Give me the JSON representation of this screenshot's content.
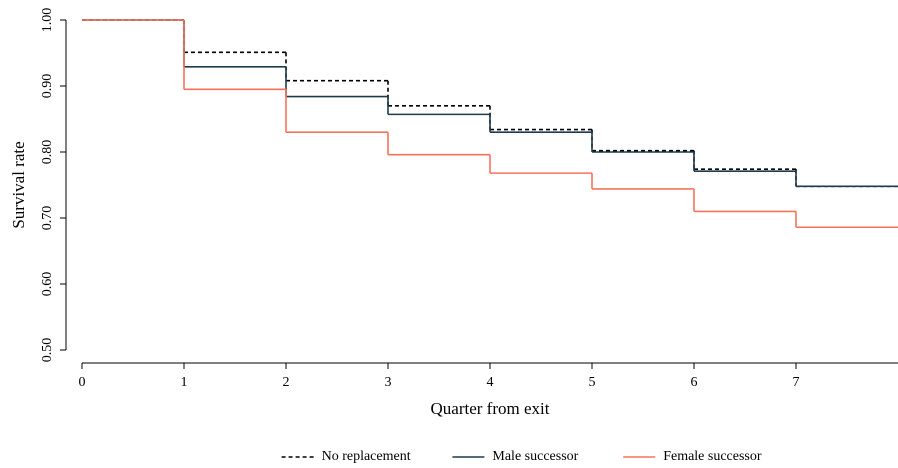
{
  "chart_data": {
    "type": "step",
    "x_label": "Quarter from exit",
    "y_label": "Survival rate",
    "x": [
      0,
      1,
      2,
      3,
      4,
      5,
      6,
      7
    ],
    "series": [
      {
        "name": "No replacement",
        "color": "#000000",
        "dash": true,
        "values": [
          1.0,
          0.951,
          0.908,
          0.87,
          0.834,
          0.802,
          0.774,
          0.748
        ]
      },
      {
        "name": "Male successor",
        "color": "#1f3a4d",
        "dash": false,
        "values": [
          1.0,
          0.929,
          0.884,
          0.857,
          0.83,
          0.8,
          0.771,
          0.748
        ]
      },
      {
        "name": "Female successor",
        "color": "#f4735b",
        "dash": false,
        "values": [
          1.0,
          0.895,
          0.83,
          0.796,
          0.768,
          0.744,
          0.71,
          0.686
        ]
      }
    ],
    "xlim": [
      0,
      8
    ],
    "ylim": [
      0.5,
      1.0
    ],
    "xticks": [
      0,
      1,
      2,
      3,
      4,
      5,
      6,
      7
    ],
    "yticks": [
      {
        "value": 0.5,
        "label": "0.50"
      },
      {
        "value": 0.6,
        "label": "0.60"
      },
      {
        "value": 0.7,
        "label": "0.70"
      },
      {
        "value": 0.8,
        "label": "0.80"
      },
      {
        "value": 0.9,
        "label": "0.90"
      },
      {
        "value": 1.0,
        "label": "1.00"
      }
    ],
    "legend": "bottom"
  }
}
